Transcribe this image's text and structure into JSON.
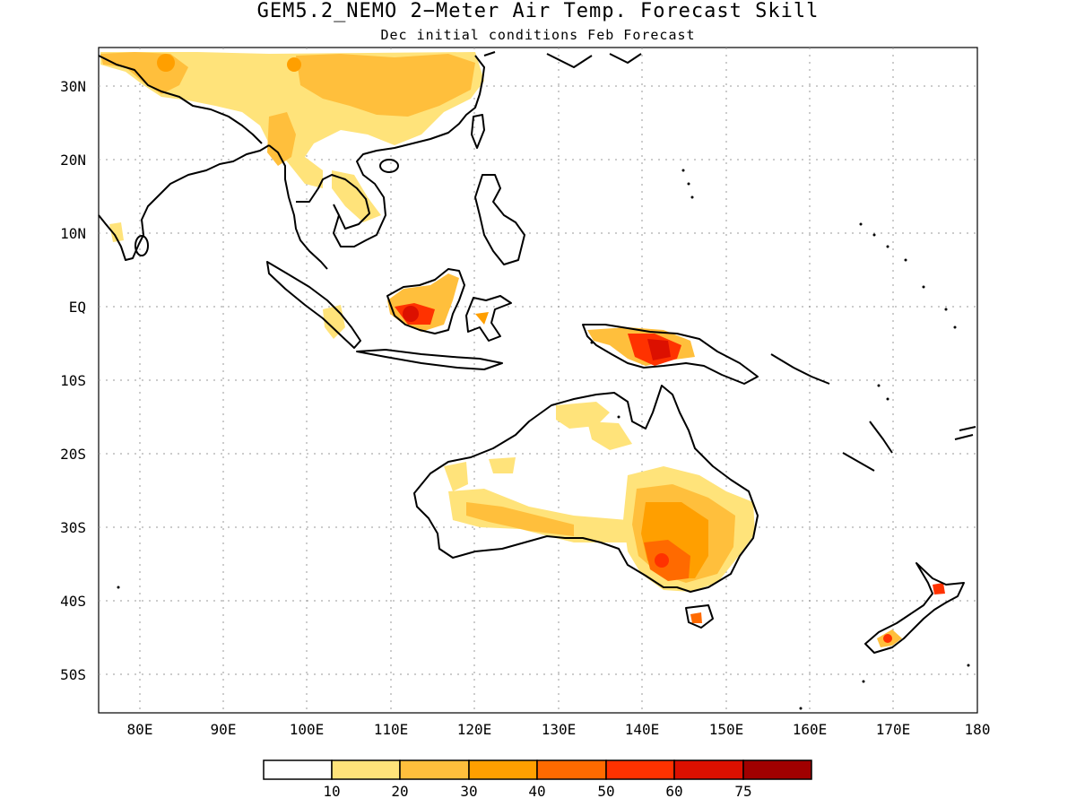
{
  "title": "GEM5.2_NEMO 2−Meter Air Temp. Forecast Skill",
  "subtitle": "Dec initial conditions  Feb Forecast",
  "axes": {
    "x_ticks": [
      "80E",
      "90E",
      "100E",
      "110E",
      "120E",
      "130E",
      "140E",
      "150E",
      "160E",
      "170E",
      "180"
    ],
    "y_ticks": [
      "30N",
      "20N",
      "10N",
      "EQ",
      "10S",
      "20S",
      "30S",
      "40S",
      "50S"
    ],
    "lon_range": [
      75,
      180
    ],
    "lat_range": [
      -55,
      35
    ]
  },
  "colorbar": {
    "labels": [
      "10",
      "20",
      "30",
      "40",
      "50",
      "60",
      "75"
    ],
    "colors": [
      "#ffffff",
      "#ffe37a",
      "#ffbf3c",
      "#ff9f00",
      "#ff6a00",
      "#ff3200",
      "#dc1000",
      "#a00000"
    ]
  },
  "regions": [
    {
      "name": "Tibet / S China",
      "value": 20
    },
    {
      "name": "Borneo",
      "value": 60
    },
    {
      "name": "New Guinea",
      "value": 75
    },
    {
      "name": "N Australia",
      "value": 20
    },
    {
      "name": "W Australia",
      "value": 20
    },
    {
      "name": "SE Australia",
      "value": 60
    },
    {
      "name": "New Zealand",
      "value": 60
    }
  ]
}
